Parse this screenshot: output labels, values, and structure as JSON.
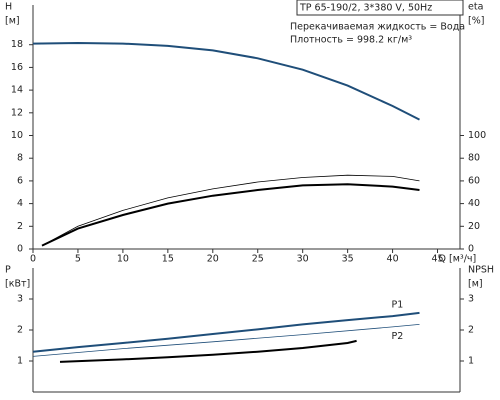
{
  "chart_data": [
    {
      "type": "line",
      "title": "TP 65-190/2, 3*380 V, 50Hz",
      "notes": [
        "Перекачиваемая жидкость = Вода",
        "Плотность = 998.2 кг/м³"
      ],
      "ylabel": "H",
      "ylabel_unit": "[м]",
      "y2label": "eta",
      "y2label_unit": "[%]",
      "xlabel": "Q [м³/ч]",
      "xlim": [
        0,
        47.5
      ],
      "xticks": [
        0,
        5,
        10,
        15,
        20,
        25,
        30,
        35,
        40,
        45
      ],
      "ylim": [
        0,
        21.5
      ],
      "yticks": [
        0,
        2,
        4,
        6,
        8,
        10,
        12,
        14,
        16,
        18
      ],
      "y2lim": [
        0,
        215
      ],
      "y2ticks": [
        0,
        20,
        40,
        60,
        80,
        100
      ],
      "series": [
        {
          "color": "#1f4e79",
          "width": 2,
          "x": [
            0,
            5,
            10,
            15,
            20,
            25,
            30,
            35,
            40,
            43
          ],
          "values": [
            18.1,
            18.15,
            18.1,
            17.9,
            17.5,
            16.8,
            15.8,
            14.4,
            12.6,
            11.4
          ]
        },
        {
          "color": "#000000",
          "width": 2,
          "axis": "y2",
          "x": [
            1,
            5,
            10,
            15,
            20,
            25,
            30,
            35,
            40,
            43
          ],
          "values": [
            3,
            18,
            30,
            40,
            47,
            52,
            56,
            57,
            55,
            52
          ]
        },
        {
          "color": "#000000",
          "width": 0.8,
          "axis": "y2",
          "x": [
            1,
            5,
            10,
            15,
            20,
            25,
            30,
            35,
            40,
            43
          ],
          "values": [
            3,
            20,
            34,
            45,
            53,
            59,
            63,
            65,
            64,
            60
          ]
        }
      ]
    },
    {
      "type": "line",
      "ylabel": "P",
      "ylabel_unit": "[кВт]",
      "y2label": "NPSH",
      "y2label_unit": "[м]",
      "xlim": [
        0,
        47.5
      ],
      "ylim": [
        0,
        4
      ],
      "yticks": [
        1,
        2,
        3
      ],
      "y2lim": [
        0,
        4
      ],
      "y2ticks": [
        1,
        2,
        3
      ],
      "series": [
        {
          "name": "P1",
          "color": "#1f4e79",
          "width": 2,
          "x": [
            0,
            5,
            10,
            15,
            20,
            25,
            30,
            35,
            40,
            43
          ],
          "values": [
            1.3,
            1.45,
            1.58,
            1.72,
            1.87,
            2.02,
            2.18,
            2.32,
            2.45,
            2.55
          ]
        },
        {
          "name": "P2",
          "color": "#1f4e79",
          "width": 0.8,
          "x": [
            0,
            10,
            20,
            30,
            40,
            43
          ],
          "values": [
            1.15,
            1.4,
            1.62,
            1.85,
            2.1,
            2.18
          ]
        },
        {
          "color": "#000000",
          "width": 2,
          "axis": "y2",
          "x": [
            3,
            10,
            15,
            20,
            25,
            30,
            35,
            36
          ],
          "values": [
            0.97,
            1.05,
            1.12,
            1.2,
            1.3,
            1.42,
            1.58,
            1.65
          ]
        }
      ]
    }
  ]
}
